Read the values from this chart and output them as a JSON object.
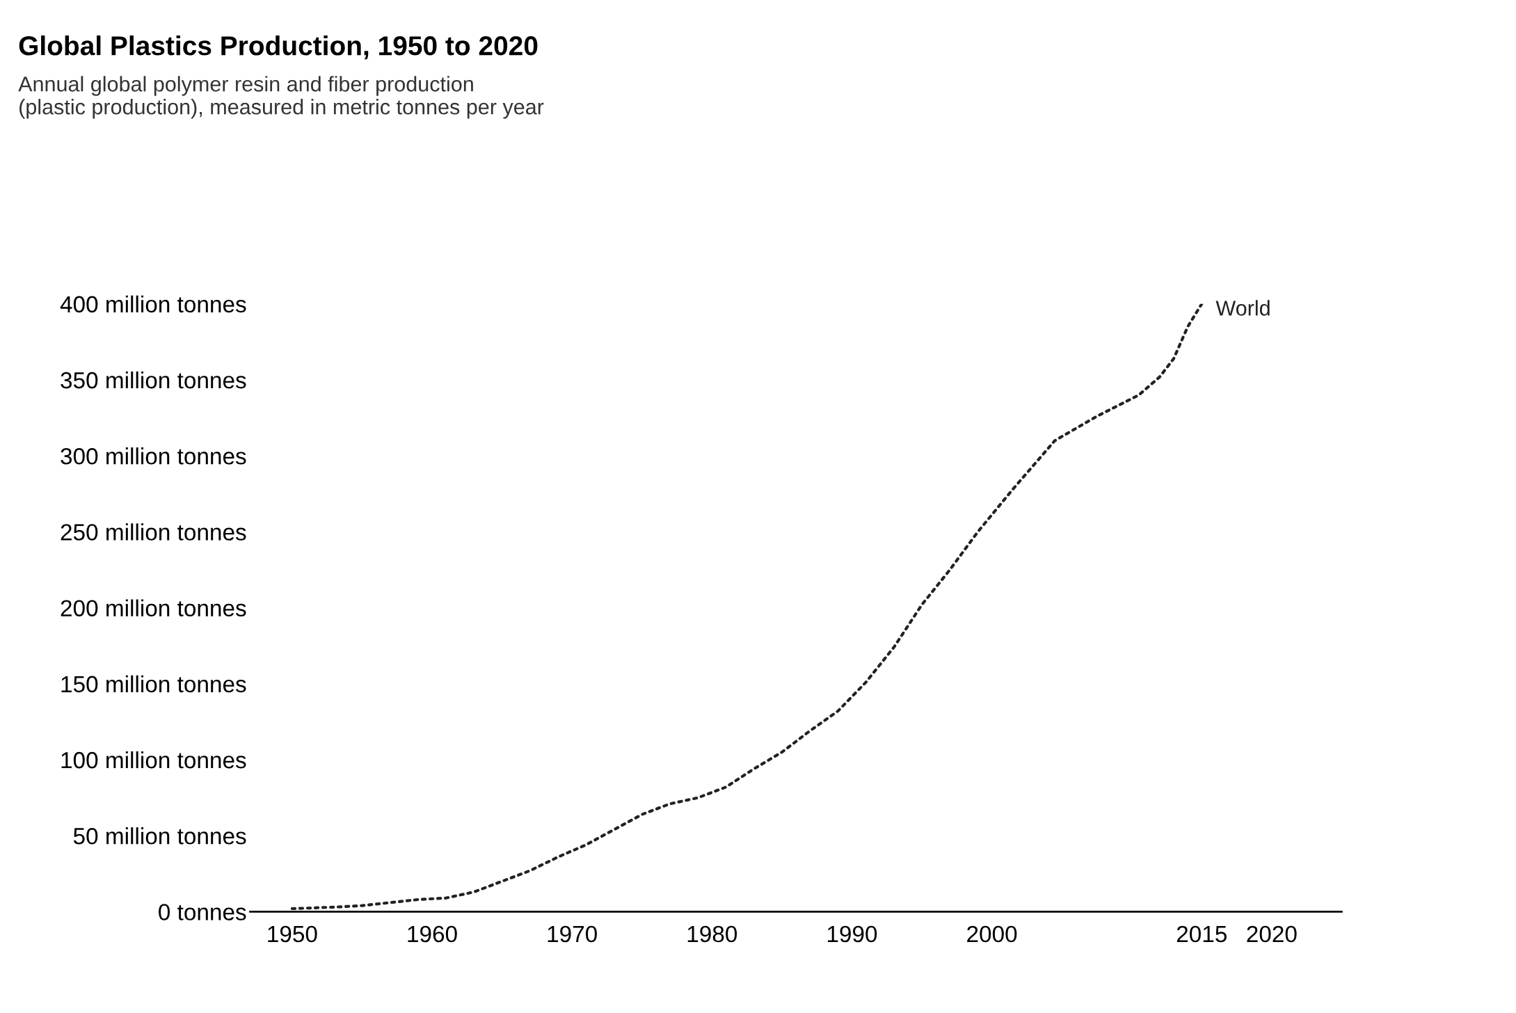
{
  "chart_data": {
    "type": "line",
    "title": "Global Plastics Production, 1950 to 2020",
    "subtitle": "Annual global polymer resin and fiber production\n(plastic production), measured in metric tonnes per year",
    "x": [
      1950,
      1953,
      1955,
      1957,
      1959,
      1961,
      1963,
      1965,
      1967,
      1969,
      1971,
      1973,
      1975,
      1977,
      1979,
      1981,
      1983,
      1985,
      1987,
      1989,
      1991,
      1993,
      1995,
      1997,
      1999,
      2001.5,
      2004.5,
      2007.5,
      2010.5,
      2012,
      2013,
      2014,
      2015
    ],
    "series": [
      {
        "name": "World",
        "color": "#222222",
        "values": [
          2,
          3,
          4,
          6,
          8,
          9,
          13,
          20,
          27,
          36,
          44,
          54,
          64,
          71,
          75,
          82,
          94,
          105,
          119,
          132,
          151,
          174,
          202,
          225,
          250,
          278,
          310,
          326,
          340,
          352,
          364,
          385,
          400
        ]
      }
    ],
    "xlim": [
      1947,
      2025
    ],
    "ylim": [
      0,
      400
    ],
    "xticks": [
      1950,
      1960,
      1970,
      1980,
      1990,
      2000,
      2015,
      2020
    ],
    "yticks": [
      {
        "value": 0,
        "label": "0 tonnes"
      },
      {
        "value": 50,
        "label": "50 million tonnes"
      },
      {
        "value": 100,
        "label": "100 million tonnes"
      },
      {
        "value": 150,
        "label": "150 million tonnes"
      },
      {
        "value": 200,
        "label": "200 million tonnes"
      },
      {
        "value": 250,
        "label": "250 million tonnes"
      },
      {
        "value": 300,
        "label": "300 million tonnes"
      },
      {
        "value": 350,
        "label": "350 million tonnes"
      },
      {
        "value": 400,
        "label": "400 million tonnes"
      }
    ],
    "line_style": "dotted",
    "grid": false,
    "legend": false
  }
}
